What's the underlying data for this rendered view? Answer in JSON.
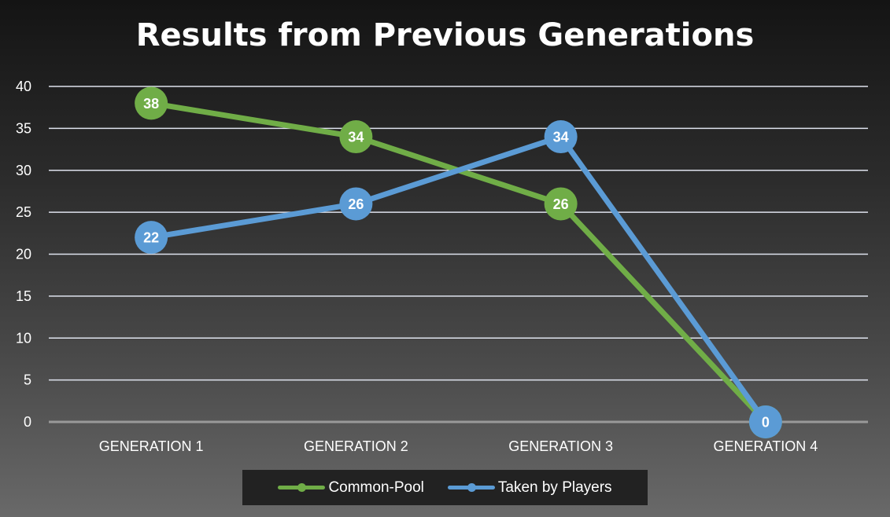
{
  "chart_data": {
    "type": "line",
    "title": "Results from Previous Generations",
    "categories": [
      "GENERATION 1",
      "GENERATION 2",
      "GENERATION 3",
      "GENERATION 4"
    ],
    "series": [
      {
        "name": "Common-Pool",
        "values": [
          38,
          34,
          26,
          0
        ],
        "color": "#70ad47"
      },
      {
        "name": "Taken by Players",
        "values": [
          22,
          26,
          34,
          0
        ],
        "color": "#5b9bd5"
      }
    ],
    "xlabel": "",
    "ylabel": "",
    "ylim": [
      0,
      40
    ],
    "yticks": [
      0,
      5,
      10,
      15,
      20,
      25,
      30,
      35,
      40
    ],
    "grid": true,
    "legend_position": "bottom",
    "data_labels": true
  }
}
